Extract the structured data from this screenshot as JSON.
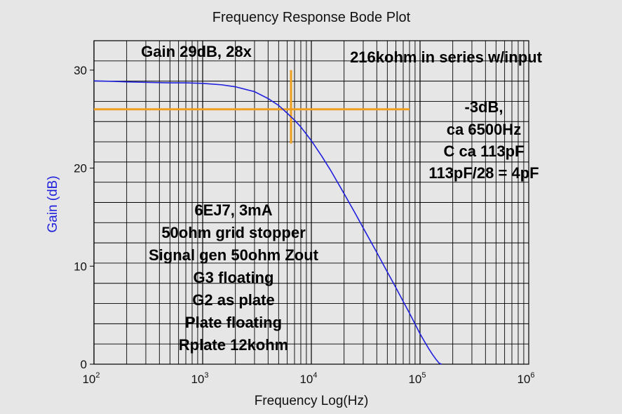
{
  "chart_data": {
    "type": "line",
    "title": "Frequency Response Bode Plot",
    "xlabel": "Frequency Log(Hz)",
    "ylabel": "Gain (dB)",
    "x_scale": "log",
    "xlim": [
      100,
      1000000
    ],
    "ylim": [
      0,
      33
    ],
    "grid": true,
    "x_ticks": [
      {
        "base": "10",
        "exp": "2"
      },
      {
        "base": "10",
        "exp": "3"
      },
      {
        "base": "10",
        "exp": "4"
      },
      {
        "base": "10",
        "exp": "5"
      },
      {
        "base": "10",
        "exp": "6"
      }
    ],
    "y_ticks": [
      "0",
      "10",
      "20",
      "30"
    ],
    "y_tick_values": [
      0,
      10,
      20,
      30
    ],
    "series": [
      {
        "color": "#1f1fdd",
        "x": [
          100,
          150,
          200,
          300,
          500,
          700,
          1000,
          1500,
          2000,
          3000,
          4000,
          5000,
          6000,
          7000,
          8000,
          10000,
          12500,
          15000,
          20000,
          25000,
          30000,
          40000,
          50000,
          60000,
          70000,
          80000,
          90000,
          100000,
          110000,
          120000,
          130000,
          140000,
          150000,
          158000
        ],
        "y": [
          28.9,
          28.85,
          28.8,
          28.75,
          28.7,
          28.7,
          28.65,
          28.5,
          28.3,
          27.8,
          27.1,
          26.4,
          25.6,
          24.9,
          24.2,
          22.8,
          21.2,
          19.8,
          17.4,
          15.5,
          13.9,
          11.4,
          9.4,
          7.8,
          6.4,
          5.2,
          4.1,
          3.1,
          2.3,
          1.6,
          1.0,
          0.5,
          0.1,
          0.0
        ]
      }
    ],
    "marker": {
      "color": "#f0a020",
      "h_y": 26,
      "h_xlim": [
        100,
        80000
      ],
      "v_x": 6500,
      "v_ylim": [
        22.5,
        30
      ]
    },
    "annotations": {
      "gain": "Gain 29dB, 28x",
      "series_resistor": "216kohm in series w/input",
      "cutoff": [
        "-3dB,",
        "ca 6500Hz",
        "C ca 113pF",
        "113pF/28 = 4pF"
      ],
      "setup": [
        "6EJ7, 3mA",
        "50ohm grid stopper",
        "Signal gen 50ohm Zout",
        "G3 floating",
        "G2 as plate",
        "Plate floating",
        "Rplate 12kohm"
      ]
    }
  },
  "colors": {
    "background": "#e6e6e6",
    "grid": "#000000",
    "curve": "#1f1fdd",
    "marker": "#f0a020",
    "ylabel": "#1f1fdd"
  }
}
